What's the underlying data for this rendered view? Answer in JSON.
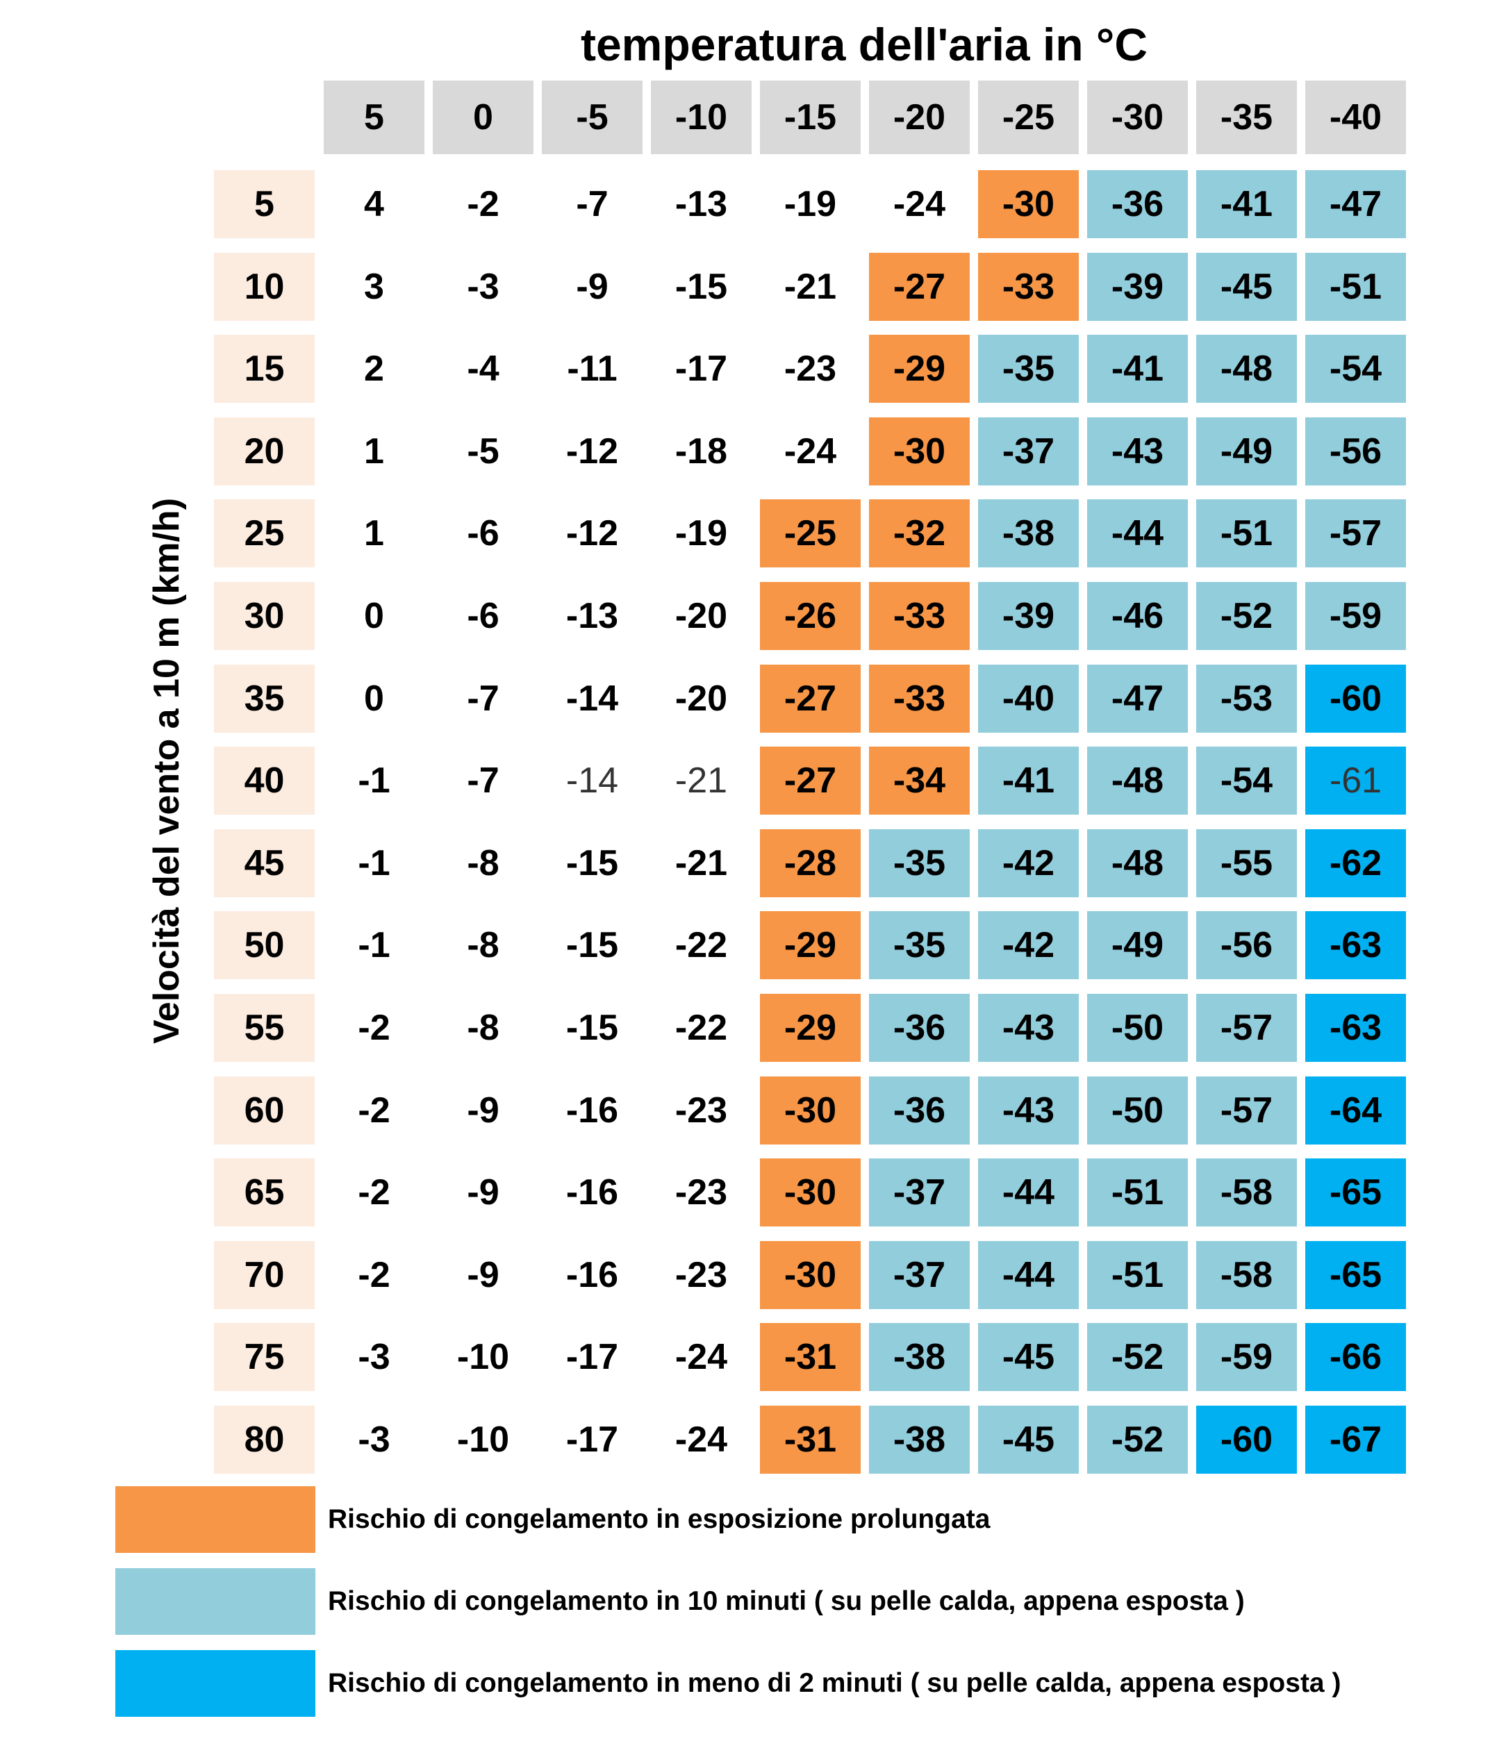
{
  "chart_data": {
    "type": "heatmap",
    "title": "temperatura dell'aria in °C",
    "ylabel": "Velocità del vento a 10 m (km/h)",
    "columns": [
      "5",
      "0",
      "-5",
      "-10",
      "-15",
      "-20",
      "-25",
      "-30",
      "-35",
      "-40"
    ],
    "rows": [
      {
        "label": "5",
        "values": [
          4,
          -2,
          -7,
          -13,
          -19,
          -24,
          -30,
          -36,
          -41,
          -47
        ],
        "risk": [
          0,
          0,
          0,
          0,
          0,
          0,
          1,
          2,
          2,
          2
        ]
      },
      {
        "label": "10",
        "values": [
          3,
          -3,
          -9,
          -15,
          -21,
          -27,
          -33,
          -39,
          -45,
          -51
        ],
        "risk": [
          0,
          0,
          0,
          0,
          0,
          1,
          1,
          2,
          2,
          2
        ]
      },
      {
        "label": "15",
        "values": [
          2,
          -4,
          -11,
          -17,
          -23,
          -29,
          -35,
          -41,
          -48,
          -54
        ],
        "risk": [
          0,
          0,
          0,
          0,
          0,
          1,
          2,
          2,
          2,
          2
        ]
      },
      {
        "label": "20",
        "values": [
          1,
          -5,
          -12,
          -18,
          -24,
          -30,
          -37,
          -43,
          -49,
          -56
        ],
        "risk": [
          0,
          0,
          0,
          0,
          0,
          1,
          2,
          2,
          2,
          2
        ]
      },
      {
        "label": "25",
        "values": [
          1,
          -6,
          -12,
          -19,
          -25,
          -32,
          -38,
          -44,
          -51,
          -57
        ],
        "risk": [
          0,
          0,
          0,
          0,
          1,
          1,
          2,
          2,
          2,
          2
        ]
      },
      {
        "label": "30",
        "values": [
          0,
          -6,
          -13,
          -20,
          -26,
          -33,
          -39,
          -46,
          -52,
          -59
        ],
        "risk": [
          0,
          0,
          0,
          0,
          1,
          1,
          2,
          2,
          2,
          2
        ]
      },
      {
        "label": "35",
        "values": [
          0,
          -7,
          -14,
          -20,
          -27,
          -33,
          -40,
          -47,
          -53,
          -60
        ],
        "risk": [
          0,
          0,
          0,
          0,
          1,
          1,
          2,
          2,
          2,
          3
        ]
      },
      {
        "label": "40",
        "values": [
          -1,
          -7,
          -14,
          -21,
          -27,
          -34,
          -41,
          -48,
          -54,
          -61
        ],
        "risk": [
          0,
          0,
          0,
          0,
          1,
          1,
          2,
          2,
          2,
          3
        ]
      },
      {
        "label": "45",
        "values": [
          -1,
          -8,
          -15,
          -21,
          -28,
          -35,
          -42,
          -48,
          -55,
          -62
        ],
        "risk": [
          0,
          0,
          0,
          0,
          1,
          2,
          2,
          2,
          2,
          3
        ]
      },
      {
        "label": "50",
        "values": [
          -1,
          -8,
          -15,
          -22,
          -29,
          -35,
          -42,
          -49,
          -56,
          -63
        ],
        "risk": [
          0,
          0,
          0,
          0,
          1,
          2,
          2,
          2,
          2,
          3
        ]
      },
      {
        "label": "55",
        "values": [
          -2,
          -8,
          -15,
          -22,
          -29,
          -36,
          -43,
          -50,
          -57,
          -63
        ],
        "risk": [
          0,
          0,
          0,
          0,
          1,
          2,
          2,
          2,
          2,
          3
        ]
      },
      {
        "label": "60",
        "values": [
          -2,
          -9,
          -16,
          -23,
          -30,
          -36,
          -43,
          -50,
          -57,
          -64
        ],
        "risk": [
          0,
          0,
          0,
          0,
          1,
          2,
          2,
          2,
          2,
          3
        ]
      },
      {
        "label": "65",
        "values": [
          -2,
          -9,
          -16,
          -23,
          -30,
          -37,
          -44,
          -51,
          -58,
          -65
        ],
        "risk": [
          0,
          0,
          0,
          0,
          1,
          2,
          2,
          2,
          2,
          3
        ]
      },
      {
        "label": "70",
        "values": [
          -2,
          -9,
          -16,
          -23,
          -30,
          -37,
          -44,
          -51,
          -58,
          -65
        ],
        "risk": [
          0,
          0,
          0,
          0,
          1,
          2,
          2,
          2,
          2,
          3
        ]
      },
      {
        "label": "75",
        "values": [
          -3,
          -10,
          -17,
          -24,
          -31,
          -38,
          -45,
          -52,
          -59,
          -66
        ],
        "risk": [
          0,
          0,
          0,
          0,
          1,
          2,
          2,
          2,
          2,
          3
        ]
      },
      {
        "label": "80",
        "values": [
          -3,
          -10,
          -17,
          -24,
          -31,
          -38,
          -45,
          -52,
          -60,
          -67
        ],
        "risk": [
          0,
          0,
          0,
          0,
          1,
          2,
          2,
          2,
          3,
          3
        ]
      }
    ],
    "legend": [
      {
        "level": 1,
        "color": "#f79646",
        "text": "Rischio di congelamento in esposizione prolungata"
      },
      {
        "level": 2,
        "color": "#92cddc",
        "text": "Rischio di congelamento in 10 minuti ( su pelle calda, appena esposta )"
      },
      {
        "level": 3,
        "color": "#00b0f0",
        "text": "Rischio di congelamento in meno di 2 minuti ( su pelle calda, appena esposta )"
      }
    ],
    "colors": {
      "header": "#d9d9d9",
      "row_header": "#fcebdf",
      "none": "#ffffff"
    }
  }
}
